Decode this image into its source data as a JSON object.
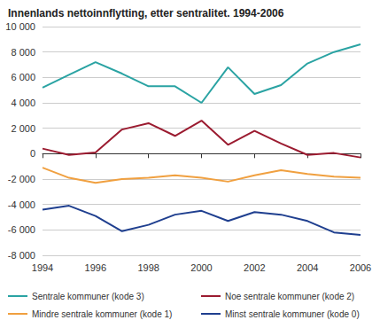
{
  "chart_data": {
    "type": "line",
    "title": "Innenlands nettoinnflytting, etter sentralitet. 1994-2006",
    "x": [
      1994,
      1995,
      1996,
      1997,
      1998,
      1999,
      2000,
      2001,
      2002,
      2003,
      2004,
      2005,
      2006
    ],
    "xlim": [
      1994,
      2006
    ],
    "xticks": [
      1994,
      1996,
      1998,
      2000,
      2002,
      2004,
      2006
    ],
    "ylim": [
      -8000,
      10000
    ],
    "yticks": [
      {
        "value": -8000,
        "label": "-8 000"
      },
      {
        "value": -6000,
        "label": "-6 000"
      },
      {
        "value": -4000,
        "label": "-4 000"
      },
      {
        "value": -2000,
        "label": "-2 000"
      },
      0,
      {
        "value": 2000,
        "label": "2 000"
      },
      {
        "value": 4000,
        "label": "4 000"
      },
      {
        "value": 6000,
        "label": "6 000"
      },
      {
        "value": 8000,
        "label": "8 000"
      },
      {
        "value": 10000,
        "label": "10 000"
      }
    ],
    "grid": true,
    "legend": "bottom",
    "series": [
      {
        "name": "Sentrale kommuner (kode 3)",
        "color": "#2aa3a3",
        "values": [
          5200,
          6200,
          7200,
          6300,
          5300,
          5300,
          4000,
          6800,
          4700,
          5400,
          7100,
          8000,
          8600
        ]
      },
      {
        "name": "Noe sentrale kommuner (kode 2)",
        "color": "#9b1b30",
        "values": [
          400,
          -100,
          100,
          1900,
          2400,
          1400,
          2600,
          700,
          1800,
          800,
          -100,
          50,
          -300
        ]
      },
      {
        "name": "Mindre sentrale kommuner (kode 1)",
        "color": "#f0a040",
        "values": [
          -1100,
          -1900,
          -2300,
          -2000,
          -1900,
          -1700,
          -1900,
          -2200,
          -1700,
          -1300,
          -1600,
          -1800,
          -1900
        ]
      },
      {
        "name": "Minst sentrale kommuner (kode 0)",
        "color": "#1f3f8f",
        "values": [
          -4400,
          -4100,
          -4900,
          -6100,
          -5600,
          -4800,
          -4500,
          -5300,
          -4600,
          -4800,
          -5300,
          -6200,
          -6400
        ]
      }
    ]
  }
}
